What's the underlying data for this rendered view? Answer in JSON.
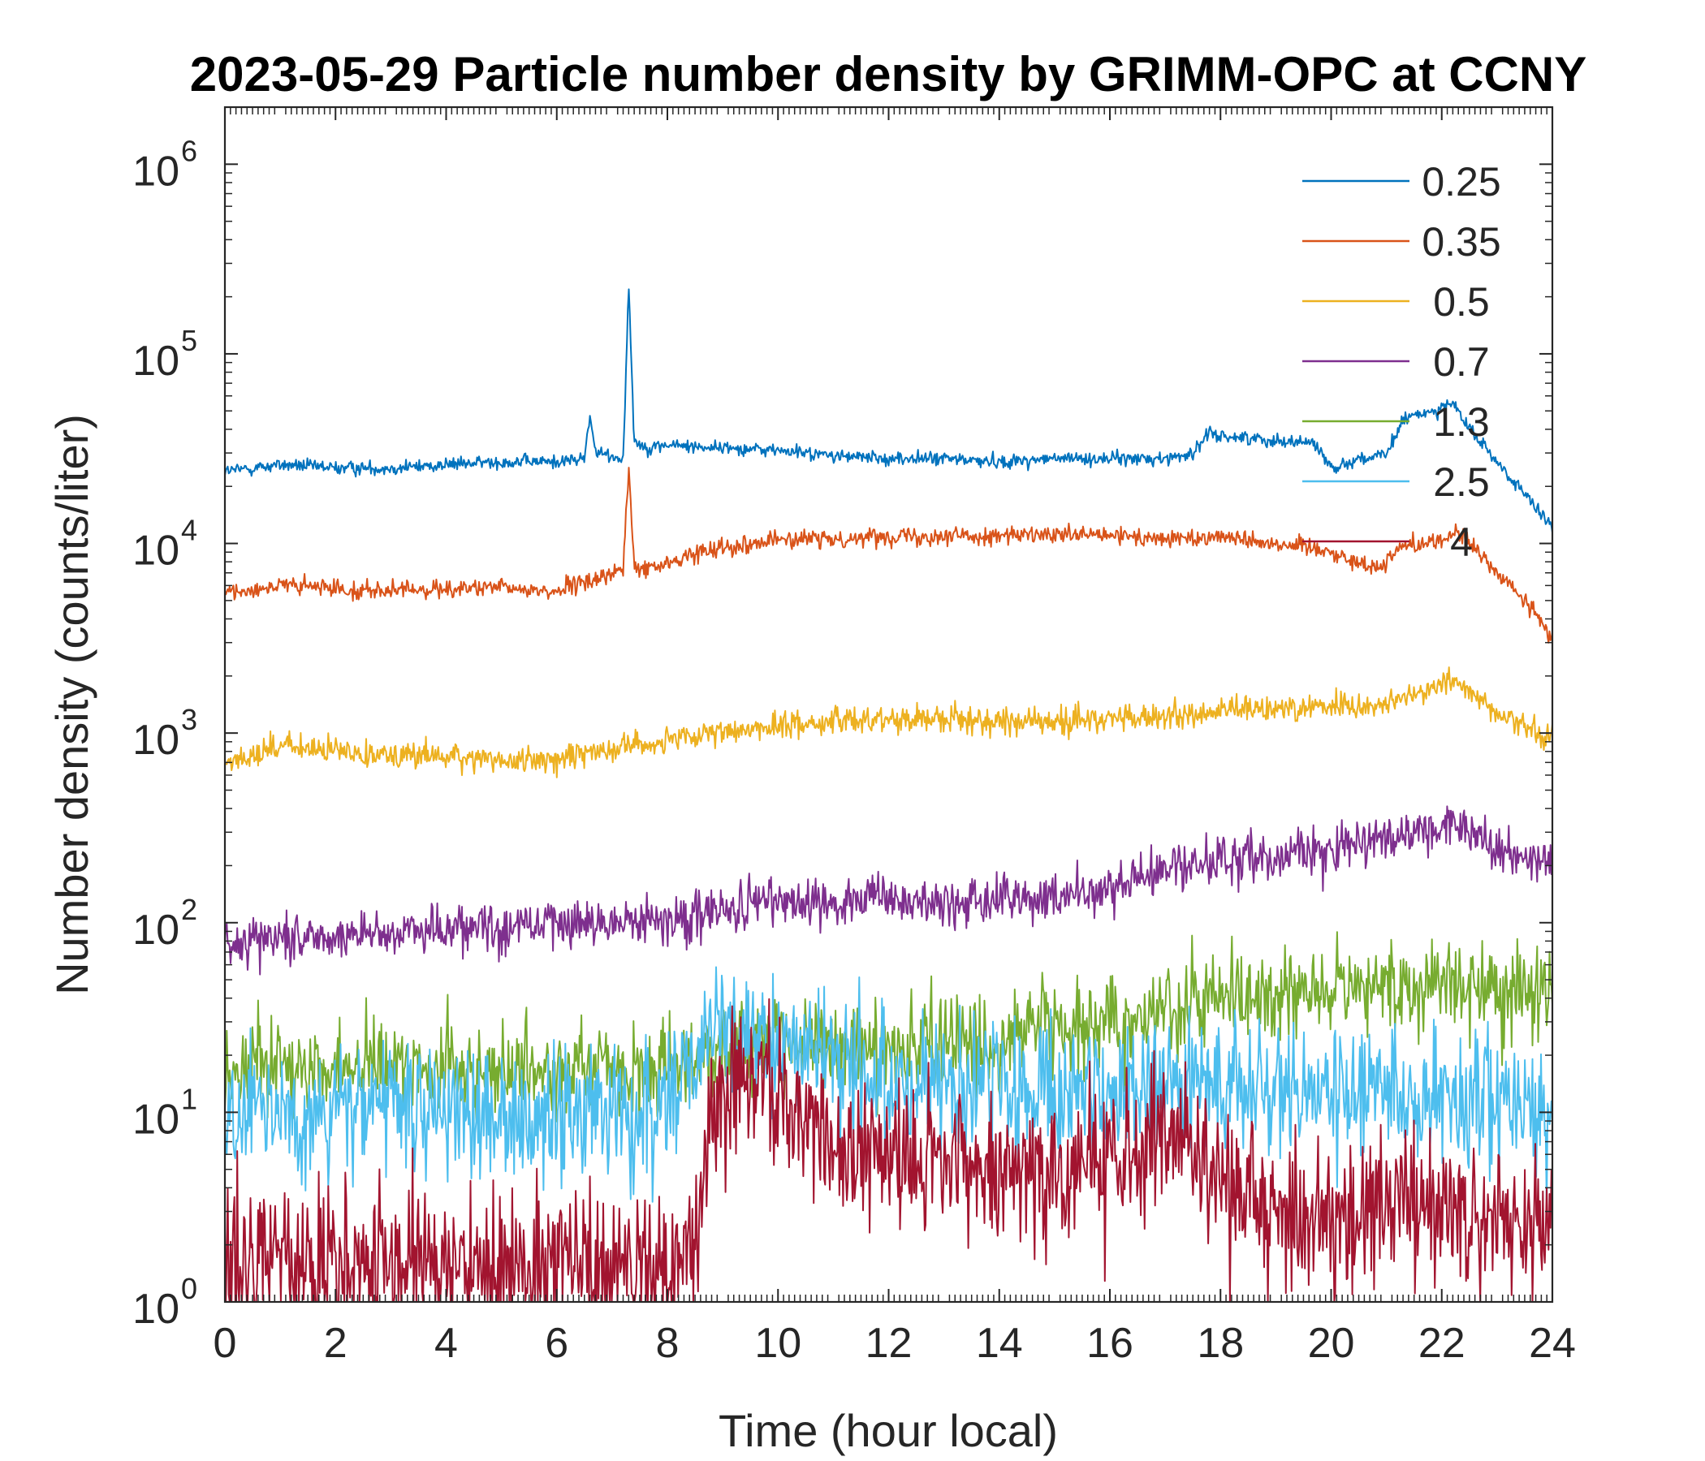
{
  "chart_data": {
    "type": "line",
    "title": "2023-05-29 Particle number density by GRIMM-OPC at CCNY",
    "xlabel": "Time (hour local)",
    "ylabel": "Number density (counts/liter)",
    "xlim": [
      0,
      24
    ],
    "yscale": "log",
    "ylim": [
      1,
      2000000
    ],
    "xticks": [
      0,
      2,
      4,
      6,
      8,
      10,
      12,
      14,
      16,
      18,
      20,
      22,
      24
    ],
    "xtick_labels": [
      "0",
      "2",
      "4",
      "6",
      "8",
      "10",
      "12",
      "14",
      "16",
      "18",
      "20",
      "22",
      "24"
    ],
    "yticks": [
      1,
      10,
      100,
      1000,
      10000,
      100000,
      1000000
    ],
    "ytick_labels": [
      {
        "base": "10",
        "exp": "0"
      },
      {
        "base": "10",
        "exp": "1"
      },
      {
        "base": "10",
        "exp": "2"
      },
      {
        "base": "10",
        "exp": "3"
      },
      {
        "base": "10",
        "exp": "4"
      },
      {
        "base": "10",
        "exp": "5"
      },
      {
        "base": "10",
        "exp": "6"
      }
    ],
    "legend_position": "top-right",
    "series": [
      {
        "name": "0.25",
        "color": "#0072BD",
        "noise": 0.03,
        "x": [
          0,
          1,
          2,
          3,
          4,
          5,
          6,
          6.5,
          6.6,
          6.7,
          7.2,
          7.3,
          7.4,
          7.6,
          8,
          9,
          10,
          11,
          12,
          13,
          14,
          15,
          16,
          17,
          17.5,
          17.8,
          18,
          19,
          19.7,
          20,
          20.5,
          21,
          21.3,
          21.6,
          22,
          22.2,
          22.5,
          23,
          23.5,
          24
        ],
        "y": [
          24000,
          26000,
          25000,
          25000,
          26000,
          27000,
          27000,
          28000,
          48000,
          30000,
          28000,
          230000,
          35000,
          32000,
          33000,
          32000,
          31000,
          29000,
          28000,
          28000,
          27000,
          28000,
          28000,
          28000,
          30000,
          38000,
          37000,
          35000,
          34000,
          25000,
          28000,
          29000,
          45000,
          48000,
          52000,
          55000,
          40000,
          27000,
          18000,
          12000
        ]
      },
      {
        "name": "0.35",
        "color": "#D95319",
        "noise": 0.04,
        "x": [
          0,
          1,
          2,
          3,
          4,
          5,
          6,
          6.5,
          7,
          7.2,
          7.3,
          7.4,
          7.6,
          8,
          8.8,
          9.5,
          10,
          11,
          12,
          13,
          14,
          15,
          16,
          17,
          18,
          19,
          19.8,
          20.4,
          20.9,
          21.2,
          22,
          22.3,
          23,
          23.5,
          24
        ],
        "y": [
          5500,
          6000,
          5800,
          5600,
          5800,
          5800,
          5600,
          6200,
          7000,
          7200,
          25000,
          7500,
          7300,
          7800,
          9500,
          10000,
          10500,
          10500,
          11000,
          11000,
          11000,
          11000,
          11000,
          10500,
          11000,
          10000,
          9500,
          8000,
          7500,
          9500,
          10500,
          11500,
          7000,
          5000,
          3200
        ]
      },
      {
        "name": "0.5",
        "color": "#EDB120",
        "noise": 0.06,
        "x": [
          0,
          1,
          2,
          3,
          4,
          5,
          6,
          7,
          8,
          9,
          10,
          11,
          12,
          13,
          14,
          15,
          16,
          17,
          18,
          19,
          20,
          21,
          21.5,
          22,
          22.2,
          22.5,
          23,
          23.5,
          24
        ],
        "y": [
          700,
          850,
          800,
          780,
          750,
          720,
          720,
          850,
          900,
          1000,
          1100,
          1150,
          1200,
          1200,
          1150,
          1150,
          1200,
          1200,
          1300,
          1350,
          1400,
          1400,
          1600,
          1800,
          2000,
          1600,
          1300,
          1100,
          900
        ]
      },
      {
        "name": "0.7",
        "color": "#7E2F8E",
        "noise": 0.11,
        "x": [
          0,
          1,
          2,
          3,
          4,
          5,
          6,
          7,
          8,
          9,
          10,
          11,
          12,
          13,
          14,
          15,
          16,
          17,
          18,
          19,
          20,
          21,
          22,
          22.2,
          23,
          24
        ],
        "y": [
          80,
          85,
          85,
          90,
          95,
          95,
          100,
          100,
          105,
          115,
          130,
          130,
          130,
          125,
          130,
          135,
          150,
          190,
          210,
          230,
          250,
          270,
          300,
          350,
          240,
          210
        ]
      },
      {
        "name": "1.3",
        "color": "#77AC30",
        "noise": 0.2,
        "x": [
          0,
          2,
          4,
          6,
          8,
          9,
          10,
          12,
          14,
          16,
          18,
          20,
          22,
          24
        ],
        "y": [
          18,
          18,
          17,
          16,
          17,
          22,
          24,
          22,
          24,
          30,
          40,
          45,
          48,
          42
        ]
      },
      {
        "name": "2.5",
        "color": "#4DBEEE",
        "noise": 0.3,
        "x": [
          0,
          2,
          4,
          6,
          8,
          8.8,
          9.5,
          10,
          11,
          12,
          14,
          16,
          18,
          20,
          22,
          24
        ],
        "y": [
          10,
          10,
          10,
          9,
          10,
          25,
          28,
          25,
          18,
          14,
          14,
          13,
          14,
          13,
          11,
          10
        ]
      },
      {
        "name": "4",
        "color": "#A2142F",
        "noise": 0.35,
        "x": [
          0,
          2,
          4,
          6,
          8.5,
          8.8,
          9.5,
          10,
          10.5,
          11,
          12,
          14,
          16,
          17.2,
          18,
          20,
          22,
          24
        ],
        "y": [
          1.5,
          1.6,
          1.5,
          1.5,
          1.6,
          10,
          14,
          12,
          8,
          6,
          6,
          5,
          6,
          8,
          4,
          3,
          3,
          2.5
        ]
      }
    ]
  }
}
